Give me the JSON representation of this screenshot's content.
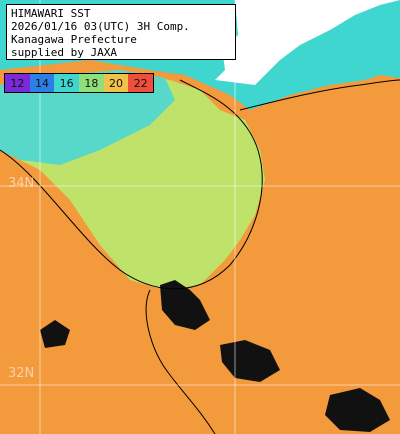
{
  "title_lines": [
    "HIMAWARI SST",
    "2026/01/16 03(UTC) 3H Comp.",
    "Kanagawa Prefecture",
    "supplied by JAXA"
  ],
  "legend": [
    {
      "label": "12",
      "color": "#7a2ad8"
    },
    {
      "label": "14",
      "color": "#2b7fe6"
    },
    {
      "label": "16",
      "color": "#3fd6d0"
    },
    {
      "label": "18",
      "color": "#8fe07a"
    },
    {
      "label": "20",
      "color": "#f0c24a"
    },
    {
      "label": "22",
      "color": "#ef4e3c"
    }
  ],
  "grid_labels": {
    "lat_34": "34N",
    "lat_32": "32N"
  },
  "colors": {
    "land": "#ffffff",
    "warm_sea": "#f39a3c",
    "mid_sea": "#bfe36a",
    "cool_sea": "#36d0c6",
    "cloud": "#111111",
    "grid": "#ffffff"
  }
}
